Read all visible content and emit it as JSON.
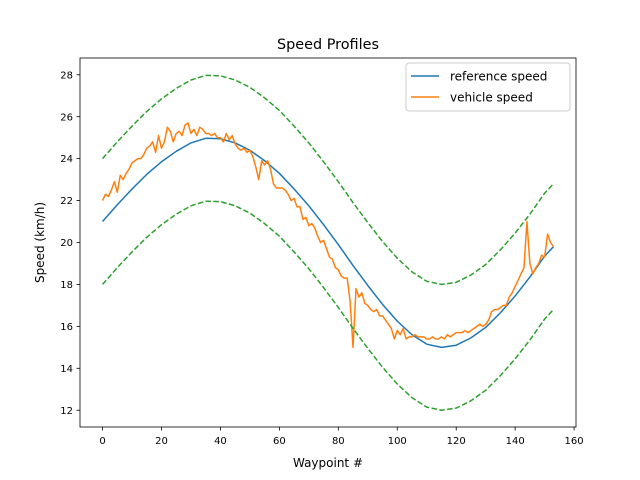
{
  "chart_data": {
    "type": "line",
    "title": "Speed Profiles",
    "xlabel": "Waypoint #",
    "ylabel": "Speed (km/h)",
    "xlim": [
      -7.65,
      160.65
    ],
    "ylim": [
      11.2,
      28.8
    ],
    "xticks": [
      0,
      20,
      40,
      60,
      80,
      100,
      120,
      140,
      160
    ],
    "yticks": [
      12,
      14,
      16,
      18,
      20,
      22,
      24,
      26,
      28
    ],
    "grid": false,
    "legend_position": "top-right",
    "series": [
      {
        "name": "reference speed",
        "color": "#1f77b4",
        "style": "solid",
        "x": [
          0,
          5,
          10,
          15,
          20,
          25,
          30,
          35,
          40,
          45,
          50,
          55,
          60,
          65,
          70,
          75,
          80,
          85,
          90,
          95,
          100,
          105,
          110,
          115,
          120,
          125,
          130,
          135,
          140,
          145,
          150,
          153
        ],
        "values": [
          21.0,
          21.8,
          22.55,
          23.25,
          23.85,
          24.35,
          24.75,
          24.97,
          24.95,
          24.75,
          24.4,
          23.9,
          23.3,
          22.55,
          21.75,
          20.85,
          19.9,
          18.9,
          17.95,
          17.05,
          16.25,
          15.6,
          15.15,
          15.0,
          15.1,
          15.45,
          15.95,
          16.65,
          17.45,
          18.35,
          19.35,
          19.8
        ]
      },
      {
        "name": "vehicle speed",
        "color": "#ff7f0e",
        "style": "solid",
        "x": [
          0,
          1,
          2,
          3,
          4,
          5,
          6,
          7,
          8,
          9,
          10,
          11,
          12,
          13,
          14,
          15,
          16,
          17,
          18,
          19,
          20,
          21,
          22,
          23,
          24,
          25,
          26,
          27,
          28,
          29,
          30,
          31,
          32,
          33,
          34,
          35,
          36,
          37,
          38,
          39,
          40,
          41,
          42,
          43,
          44,
          45,
          46,
          47,
          48,
          49,
          50,
          51,
          52,
          53,
          54,
          55,
          56,
          57,
          58,
          59,
          60,
          61,
          62,
          63,
          64,
          65,
          66,
          67,
          68,
          69,
          70,
          71,
          72,
          73,
          74,
          75,
          76,
          77,
          78,
          79,
          80,
          81,
          82,
          83,
          84,
          85,
          86,
          87,
          88,
          89,
          90,
          91,
          92,
          93,
          94,
          95,
          96,
          97,
          98,
          99,
          100,
          101,
          102,
          103,
          104,
          105,
          106,
          107,
          108,
          109,
          110,
          111,
          112,
          113,
          114,
          115,
          116,
          117,
          118,
          119,
          120,
          121,
          122,
          123,
          124,
          125,
          126,
          127,
          128,
          129,
          130,
          131,
          132,
          133,
          134,
          135,
          136,
          137,
          138,
          139,
          140,
          141,
          142,
          143,
          144,
          145,
          146,
          147,
          148,
          149,
          150,
          151,
          152,
          153
        ],
        "values": [
          22.0,
          22.3,
          22.2,
          22.5,
          22.9,
          22.4,
          23.2,
          23.0,
          23.3,
          23.5,
          23.8,
          23.9,
          24.0,
          24.0,
          24.2,
          24.5,
          24.6,
          24.8,
          24.3,
          25.1,
          24.5,
          24.8,
          25.5,
          25.3,
          24.8,
          25.2,
          25.3,
          25.1,
          25.6,
          25.7,
          25.2,
          25.4,
          25.1,
          25.5,
          25.4,
          25.2,
          25.2,
          25.1,
          25.2,
          25.0,
          25.0,
          24.8,
          25.2,
          24.9,
          25.1,
          24.7,
          24.5,
          24.4,
          24.5,
          24.3,
          24.4,
          24.1,
          23.6,
          23.0,
          23.9,
          23.7,
          23.9,
          23.5,
          22.8,
          22.6,
          22.6,
          22.6,
          22.5,
          22.3,
          22.0,
          22.1,
          21.7,
          21.7,
          21.1,
          21.2,
          20.8,
          20.9,
          20.7,
          20.3,
          20.0,
          20.1,
          19.7,
          19.3,
          19.2,
          18.8,
          18.7,
          18.4,
          18.3,
          18.3,
          17.2,
          15.0,
          17.8,
          17.4,
          17.6,
          17.1,
          17.0,
          16.8,
          16.7,
          16.8,
          16.5,
          16.5,
          16.3,
          16.1,
          15.9,
          15.4,
          15.8,
          15.6,
          15.9,
          15.4,
          15.5,
          15.5,
          15.6,
          15.5,
          15.5,
          15.5,
          15.4,
          15.4,
          15.5,
          15.4,
          15.4,
          15.5,
          15.4,
          15.6,
          15.5,
          15.6,
          15.7,
          15.7,
          15.7,
          15.8,
          15.7,
          15.8,
          15.9,
          16.0,
          16.1,
          16.0,
          16.1,
          16.3,
          16.7,
          16.8,
          16.8,
          16.9,
          17.0,
          17.0,
          17.4,
          17.6,
          17.9,
          18.2,
          18.5,
          18.8,
          21.0,
          19.0,
          18.5,
          18.8,
          19.0,
          19.4,
          19.3,
          20.4,
          20.0,
          19.8
        ]
      },
      {
        "name": "",
        "color": "#2ca02c",
        "style": "dashed",
        "x": [
          0,
          5,
          10,
          15,
          20,
          25,
          30,
          35,
          40,
          45,
          50,
          55,
          60,
          65,
          70,
          75,
          80,
          85,
          90,
          95,
          100,
          105,
          110,
          115,
          120,
          125,
          130,
          135,
          140,
          145,
          150,
          153
        ],
        "values": [
          24.0,
          24.8,
          25.55,
          26.25,
          26.85,
          27.35,
          27.75,
          27.97,
          27.95,
          27.75,
          27.4,
          26.9,
          26.3,
          25.55,
          24.75,
          23.85,
          22.9,
          21.9,
          20.95,
          20.05,
          19.25,
          18.6,
          18.15,
          18.0,
          18.1,
          18.45,
          18.95,
          19.65,
          20.45,
          21.35,
          22.35,
          22.8
        ]
      },
      {
        "name": "",
        "color": "#2ca02c",
        "style": "dashed",
        "x": [
          0,
          5,
          10,
          15,
          20,
          25,
          30,
          35,
          40,
          45,
          50,
          55,
          60,
          65,
          70,
          75,
          80,
          85,
          90,
          95,
          100,
          105,
          110,
          115,
          120,
          125,
          130,
          135,
          140,
          145,
          150,
          153
        ],
        "values": [
          18.0,
          18.8,
          19.55,
          20.25,
          20.85,
          21.35,
          21.75,
          21.97,
          21.95,
          21.75,
          21.4,
          20.9,
          20.3,
          19.55,
          18.75,
          17.85,
          16.9,
          15.9,
          14.95,
          14.05,
          13.25,
          12.6,
          12.15,
          12.0,
          12.1,
          12.45,
          12.95,
          13.65,
          14.45,
          15.35,
          16.35,
          16.8
        ]
      }
    ]
  }
}
